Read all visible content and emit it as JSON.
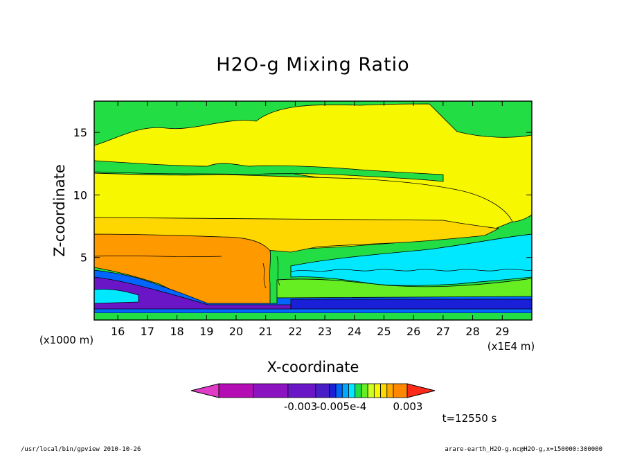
{
  "chart_data": {
    "type": "heatmap",
    "title": "H2O-g Mixing Ratio",
    "xlabel": "X-coordinate",
    "ylabel": "Z-coordinate",
    "x_units_label": "(x1E4 m)",
    "y_units_label": "(x1000 m)",
    "xlim": [
      15.2,
      30
    ],
    "ylim": [
      0,
      17.5
    ],
    "x_ticks": [
      16,
      17,
      18,
      19,
      20,
      21,
      22,
      23,
      24,
      25,
      26,
      27,
      28,
      29
    ],
    "y_ticks": [
      5,
      10,
      15
    ],
    "colorbar": {
      "levels": [
        "-0.003",
        "-0.005e-4",
        "0.003"
      ],
      "colors": [
        "#e03cc8",
        "#b30db3",
        "#8c13c0",
        "#6a16c6",
        "#4a1ec6",
        "#1a20d8",
        "#0066ff",
        "#00a8ff",
        "#00e8ff",
        "#22dd44",
        "#66ee22",
        "#ccff22",
        "#f7f700",
        "#ffd700",
        "#ffaa00",
        "#ff8800",
        "#ff2a1a"
      ]
    },
    "annotation_time": "t=12550 s"
  },
  "footer": {
    "left": "/usr/local/bin/gpview  2010-10-26",
    "right": "arare-earth_H2O-g.nc@H2O-g,x=150000:300000"
  }
}
